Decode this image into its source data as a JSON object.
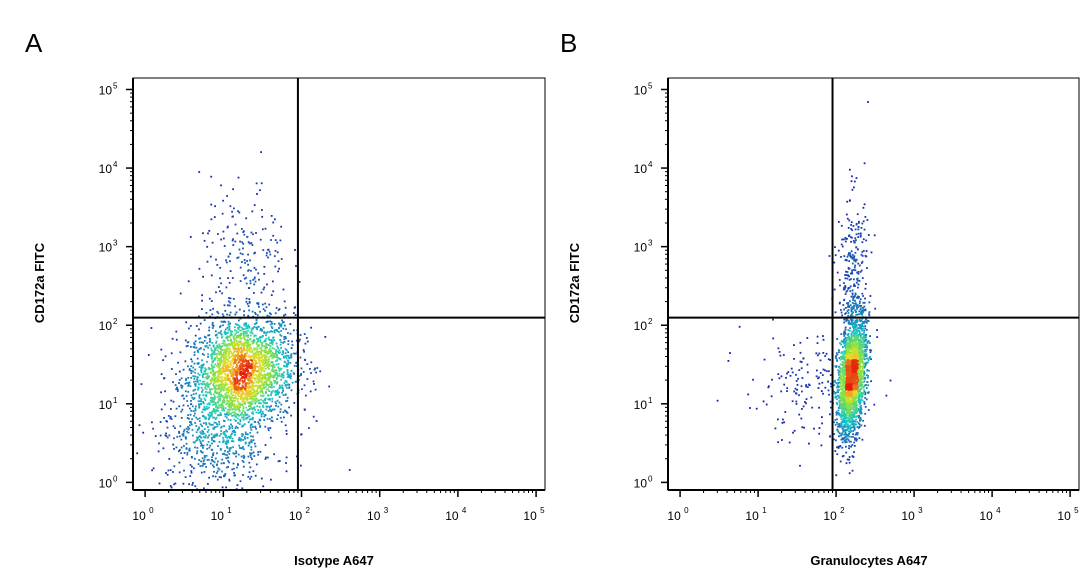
{
  "chart_data": [
    {
      "type": "scatter",
      "panel_label": "A",
      "xlabel": "Isotype A647",
      "ylabel": "CD172a FITC",
      "x_scale": "log",
      "y_scale": "log",
      "xlim": [
        0.7,
        130000
      ],
      "ylim": [
        0.8,
        140000
      ],
      "x_ticks": [
        {
          "base": "10",
          "exp": "0",
          "value": 1
        },
        {
          "base": "10",
          "exp": "1",
          "value": 10
        },
        {
          "base": "10",
          "exp": "2",
          "value": 100
        },
        {
          "base": "10",
          "exp": "3",
          "value": 1000
        },
        {
          "base": "10",
          "exp": "4",
          "value": 10000
        },
        {
          "base": "10",
          "exp": "5",
          "value": 100000
        }
      ],
      "y_ticks": [
        {
          "base": "10",
          "exp": "0",
          "value": 1
        },
        {
          "base": "10",
          "exp": "1",
          "value": 10
        },
        {
          "base": "10",
          "exp": "2",
          "value": 100
        },
        {
          "base": "10",
          "exp": "3",
          "value": 1000
        },
        {
          "base": "10",
          "exp": "4",
          "value": 10000
        },
        {
          "base": "10",
          "exp": "5",
          "value": 100000
        }
      ],
      "quadrant_gate": {
        "x": 90,
        "y": 125
      },
      "populations": [
        {
          "center": [
            17,
            25
          ],
          "spread_log": [
            0.34,
            0.36
          ],
          "correlation": 0.15,
          "count": 2600
        },
        {
          "center": [
            18,
            700
          ],
          "spread_log": [
            0.28,
            0.5
          ],
          "correlation": 0.0,
          "count": 200
        },
        {
          "center": [
            8,
            3
          ],
          "spread_log": [
            0.4,
            0.35
          ],
          "correlation": 0.0,
          "count": 500
        }
      ],
      "grid": false,
      "legend": "none"
    },
    {
      "type": "scatter",
      "panel_label": "B",
      "xlabel": "Granulocytes A647",
      "ylabel": "CD172a FITC",
      "x_scale": "log",
      "y_scale": "log",
      "xlim": [
        0.7,
        130000
      ],
      "ylim": [
        0.8,
        140000
      ],
      "x_ticks": [
        {
          "base": "10",
          "exp": "0",
          "value": 1
        },
        {
          "base": "10",
          "exp": "1",
          "value": 10
        },
        {
          "base": "10",
          "exp": "2",
          "value": 100
        },
        {
          "base": "10",
          "exp": "3",
          "value": 1000
        },
        {
          "base": "10",
          "exp": "4",
          "value": 10000
        },
        {
          "base": "10",
          "exp": "5",
          "value": 100000
        }
      ],
      "y_ticks": [
        {
          "base": "10",
          "exp": "0",
          "value": 1
        },
        {
          "base": "10",
          "exp": "1",
          "value": 10
        },
        {
          "base": "10",
          "exp": "2",
          "value": 100
        },
        {
          "base": "10",
          "exp": "3",
          "value": 1000
        },
        {
          "base": "10",
          "exp": "4",
          "value": 10000
        },
        {
          "base": "10",
          "exp": "5",
          "value": 100000
        }
      ],
      "quadrant_gate": {
        "x": 90,
        "y": 125
      },
      "populations": [
        {
          "center": [
            160,
            22
          ],
          "spread_log": [
            0.09,
            0.38
          ],
          "correlation": 0.35,
          "count": 2400
        },
        {
          "center": [
            165,
            500
          ],
          "spread_log": [
            0.1,
            0.5
          ],
          "correlation": 0.0,
          "count": 260
        },
        {
          "center": [
            40,
            15
          ],
          "spread_log": [
            0.4,
            0.35
          ],
          "correlation": 0.0,
          "count": 160
        }
      ],
      "grid": false,
      "legend": "none"
    }
  ],
  "colors": {
    "density_low": "#1a1aa8",
    "density_mid": "#17c7c7",
    "density_high_mid": "#8fe33a",
    "density_peak": "#e81c0c",
    "gate_line": "#000000",
    "axes": "#000000"
  }
}
